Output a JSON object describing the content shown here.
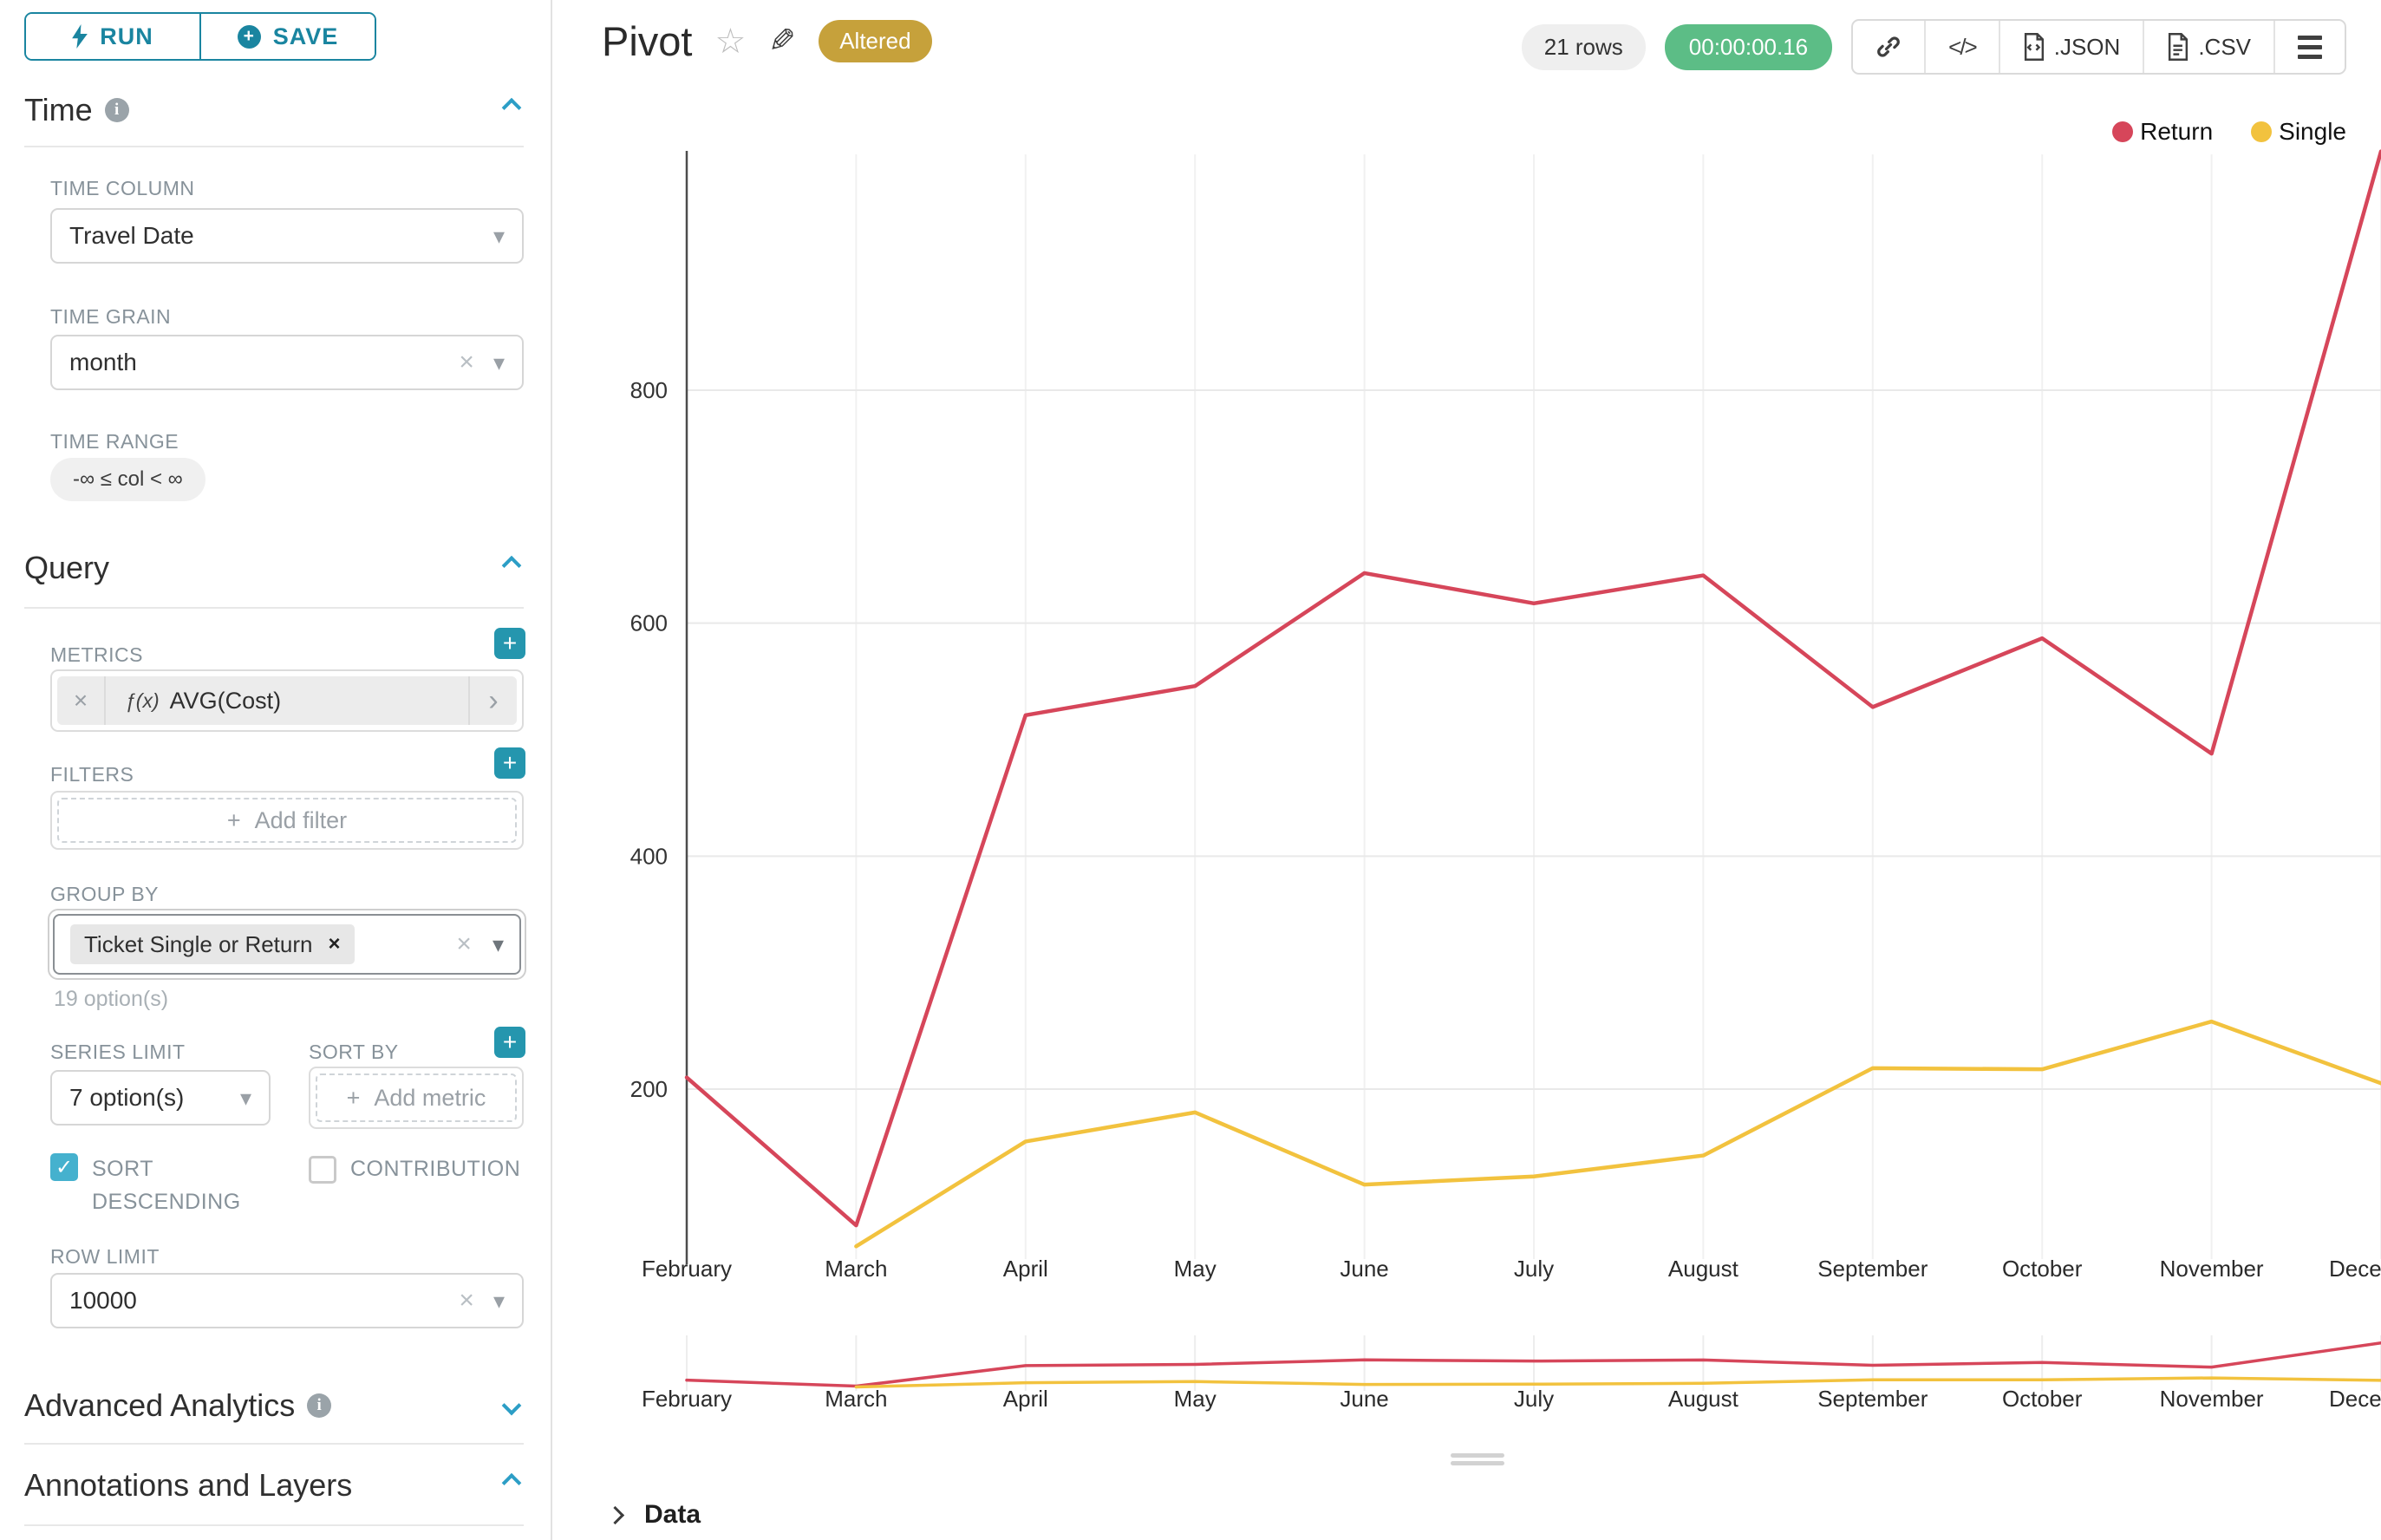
{
  "colors": {
    "accent_teal": "#1A85A0",
    "plus_button_teal": "#2596AE",
    "chevron_blue": "#2C9EC6",
    "checkbox_teal": "#45B1CE",
    "timer_green": "#5CBD86",
    "altered_gold": "#C6A13B",
    "series_return_red": "#D6465A",
    "series_single_yellow": "#F2C23E"
  },
  "icons": {
    "plus": "+",
    "close": "×",
    "caret_down": "▾",
    "star": "☆",
    "pencil": "✎",
    "check": "✓",
    "chevron_right": "›",
    "code": "</>"
  },
  "sidebar": {
    "run_label": "RUN",
    "save_label": "SAVE",
    "time": {
      "header": "Time",
      "column_label": "TIME COLUMN",
      "column_value": "Travel Date",
      "grain_label": "TIME GRAIN",
      "grain_value": "month",
      "range_label": "TIME RANGE",
      "range_value": "-∞ ≤ col < ∞"
    },
    "query": {
      "header": "Query",
      "metrics_label": "METRICS",
      "metric_fx": "ƒ(x)",
      "metric_name": "AVG(Cost)",
      "filters_label": "FILTERS",
      "add_filter": "Add filter",
      "group_by_label": "GROUP BY",
      "group_by_tag": "Ticket Single or Return",
      "group_by_hint": "19 option(s)",
      "series_limit_label": "SERIES LIMIT",
      "series_limit_value": "7 option(s)",
      "sort_by_label": "SORT BY",
      "add_metric": "Add metric",
      "sort_descending_label": "SORT DESCENDING",
      "contribution_label": "CONTRIBUTION",
      "row_limit_label": "ROW LIMIT",
      "row_limit_value": "10000"
    },
    "advanced_header": "Advanced Analytics",
    "annotations_header": "Annotations and Layers"
  },
  "header": {
    "title": "Pivot",
    "altered": "Altered",
    "rows": "21 rows",
    "duration": "00:00:00.16",
    "json_label": ".JSON",
    "csv_label": ".CSV"
  },
  "footer": {
    "data_label": "Data"
  },
  "chart_data": {
    "type": "line",
    "x_tick_labels": [
      "February",
      "March",
      "April",
      "May",
      "June",
      "July",
      "August",
      "September",
      "October",
      "November",
      "December"
    ],
    "x_last_tick_rendered": "Dece",
    "y_ticks": [
      200,
      400,
      600,
      800
    ],
    "ylim_visible": [
      50,
      1010
    ],
    "grid": true,
    "legend_position": "top-right",
    "series": [
      {
        "name": "Return",
        "color": "#D6465A",
        "values": [
          210,
          83,
          521,
          546,
          643,
          617,
          641,
          528,
          587,
          488,
          1005
        ]
      },
      {
        "name": "Single",
        "color": "#F2C23E",
        "values": [
          null,
          65,
          155,
          180,
          118,
          125,
          143,
          218,
          217,
          258,
          205
        ]
      }
    ],
    "has_mini_range_chart": true
  }
}
